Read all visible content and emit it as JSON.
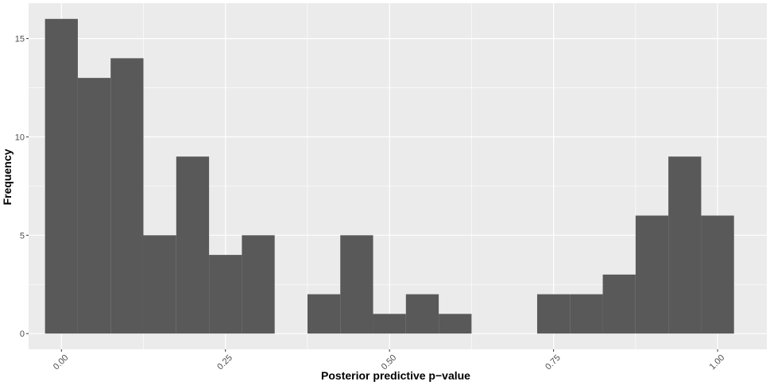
{
  "chart_data": {
    "type": "bar",
    "subtype": "histogram",
    "title": "",
    "xlabel": "Posterior predictive p−value",
    "ylabel": "Frequency",
    "bin_width": 0.05,
    "bin_centers": [
      0.0,
      0.05,
      0.1,
      0.15,
      0.2,
      0.25,
      0.3,
      0.35,
      0.4,
      0.45,
      0.5,
      0.55,
      0.6,
      0.65,
      0.7,
      0.75,
      0.8,
      0.85,
      0.9,
      0.95,
      1.0
    ],
    "values": [
      16,
      13,
      14,
      5,
      9,
      4,
      5,
      0,
      2,
      5,
      1,
      2,
      1,
      0,
      0,
      2,
      2,
      3,
      6,
      9,
      6
    ],
    "xlim": [
      -0.05,
      1.075
    ],
    "ylim": [
      -0.8,
      16.8
    ],
    "x_ticks": [
      0.0,
      0.25,
      0.5,
      0.75,
      1.0
    ],
    "x_tick_labels": [
      "0.00",
      "0.25",
      "0.50",
      "0.75",
      "1.00"
    ],
    "y_ticks": [
      0,
      5,
      10,
      15
    ],
    "y_tick_labels": [
      "0",
      "5",
      "10",
      "15"
    ],
    "grid": true,
    "colors": {
      "panel_background": "#ebebeb",
      "grid_major": "#ffffff",
      "bar_fill": "#595959",
      "tick_label": "#4d4d4d"
    }
  }
}
